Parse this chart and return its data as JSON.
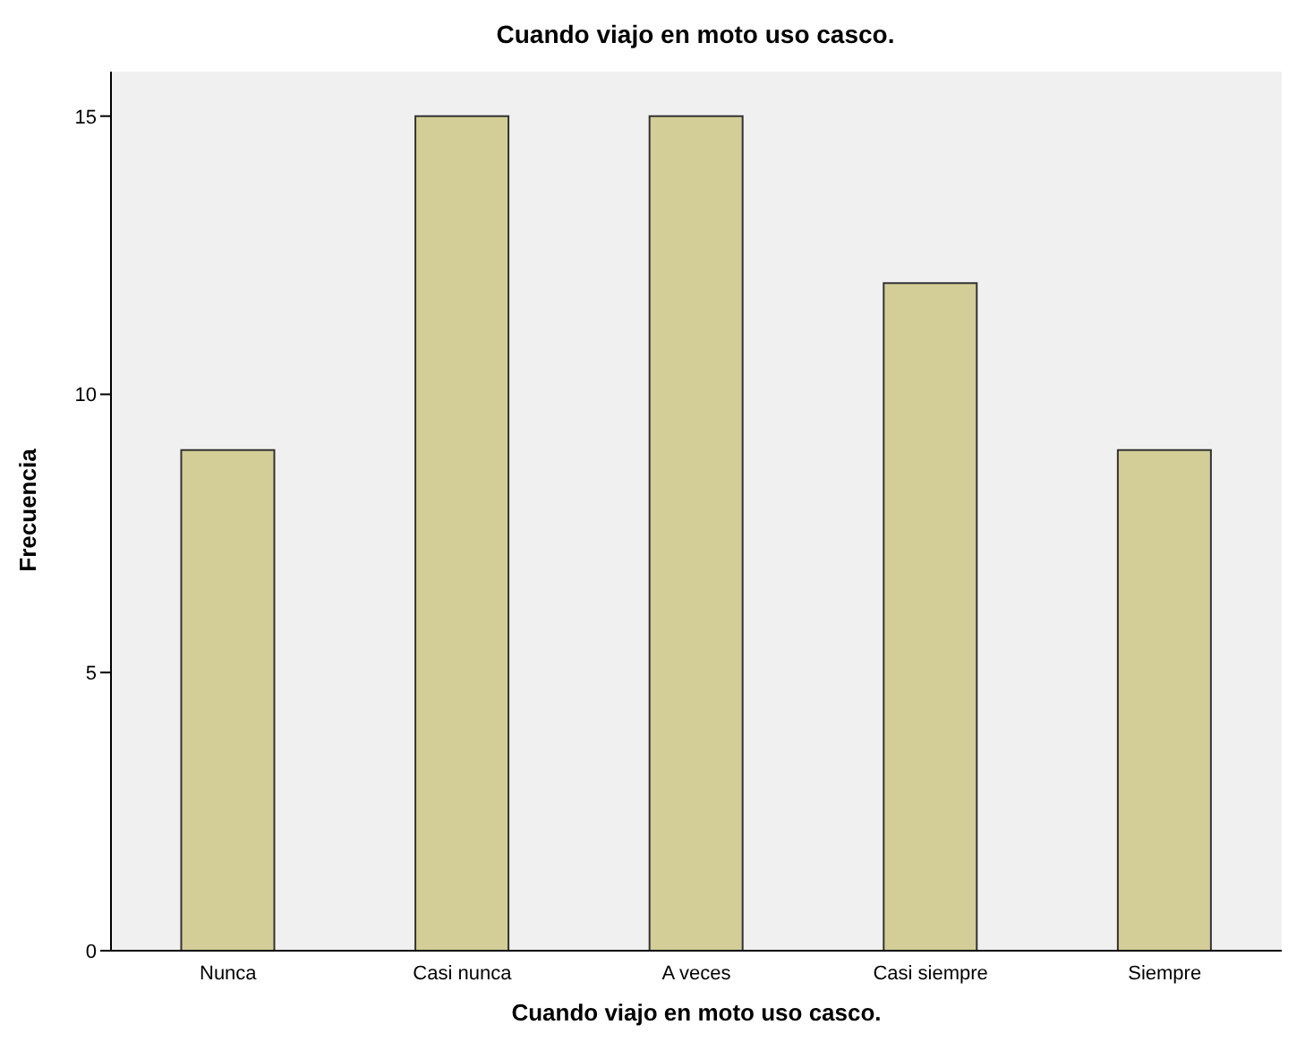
{
  "chart_data": {
    "type": "bar",
    "title": "Cuando viajo en moto uso casco.",
    "xlabel": "Cuando viajo en moto uso casco.",
    "ylabel": "Frecuencia",
    "categories": [
      "Nunca",
      "Casi nunca",
      "A veces",
      "Casi siempre",
      "Siempre"
    ],
    "values": [
      9,
      15,
      15,
      12,
      9
    ],
    "color": "#d3ce97",
    "ylim": [
      0,
      15.8
    ],
    "yticks": [
      0,
      5,
      10,
      15
    ]
  }
}
